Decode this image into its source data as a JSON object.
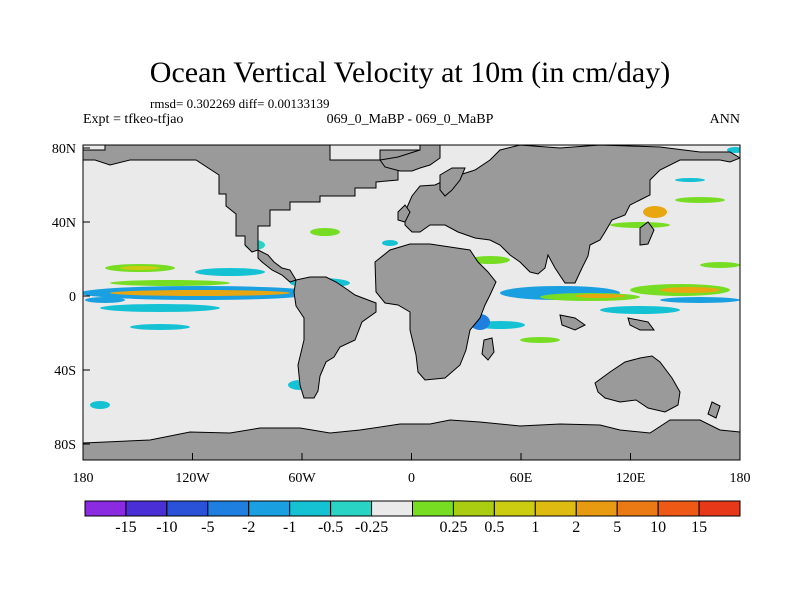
{
  "title": "Ocean Vertical Velocity at 10m (in cm/day)",
  "stats": "rmsd= 0.302269 diff= 0.00133139",
  "expt": "Expt = tfkeo-tfjao",
  "subtitle": "069_0_MaBP - 069_0_MaBP",
  "period": "ANN",
  "colors": {
    "land": "#9a9a9a",
    "ocean": "#eaeaea"
  },
  "lon_ticks": [
    "180",
    "120W",
    "60W",
    "0",
    "60E",
    "120E",
    "180"
  ],
  "lat_ticks": [
    "80N",
    "40N",
    "0",
    "40S",
    "80S"
  ],
  "colorbar": {
    "colors": [
      "#8a2be2",
      "#4b2fd6",
      "#2a52d8",
      "#1e7fe0",
      "#1aa0e0",
      "#15c2d4",
      "#2ad4c4",
      "#eaeaea",
      "#77dd22",
      "#aacc11",
      "#cccc11",
      "#ddbb11",
      "#e89a11",
      "#ec7a14",
      "#ee5a16",
      "#e8381a"
    ],
    "labels": [
      "-15",
      "-10",
      "-5",
      "-2",
      "-1",
      "-0.5",
      "-0.25",
      "0.25",
      "0.5",
      "1",
      "2",
      "5",
      "10",
      "15"
    ]
  }
}
